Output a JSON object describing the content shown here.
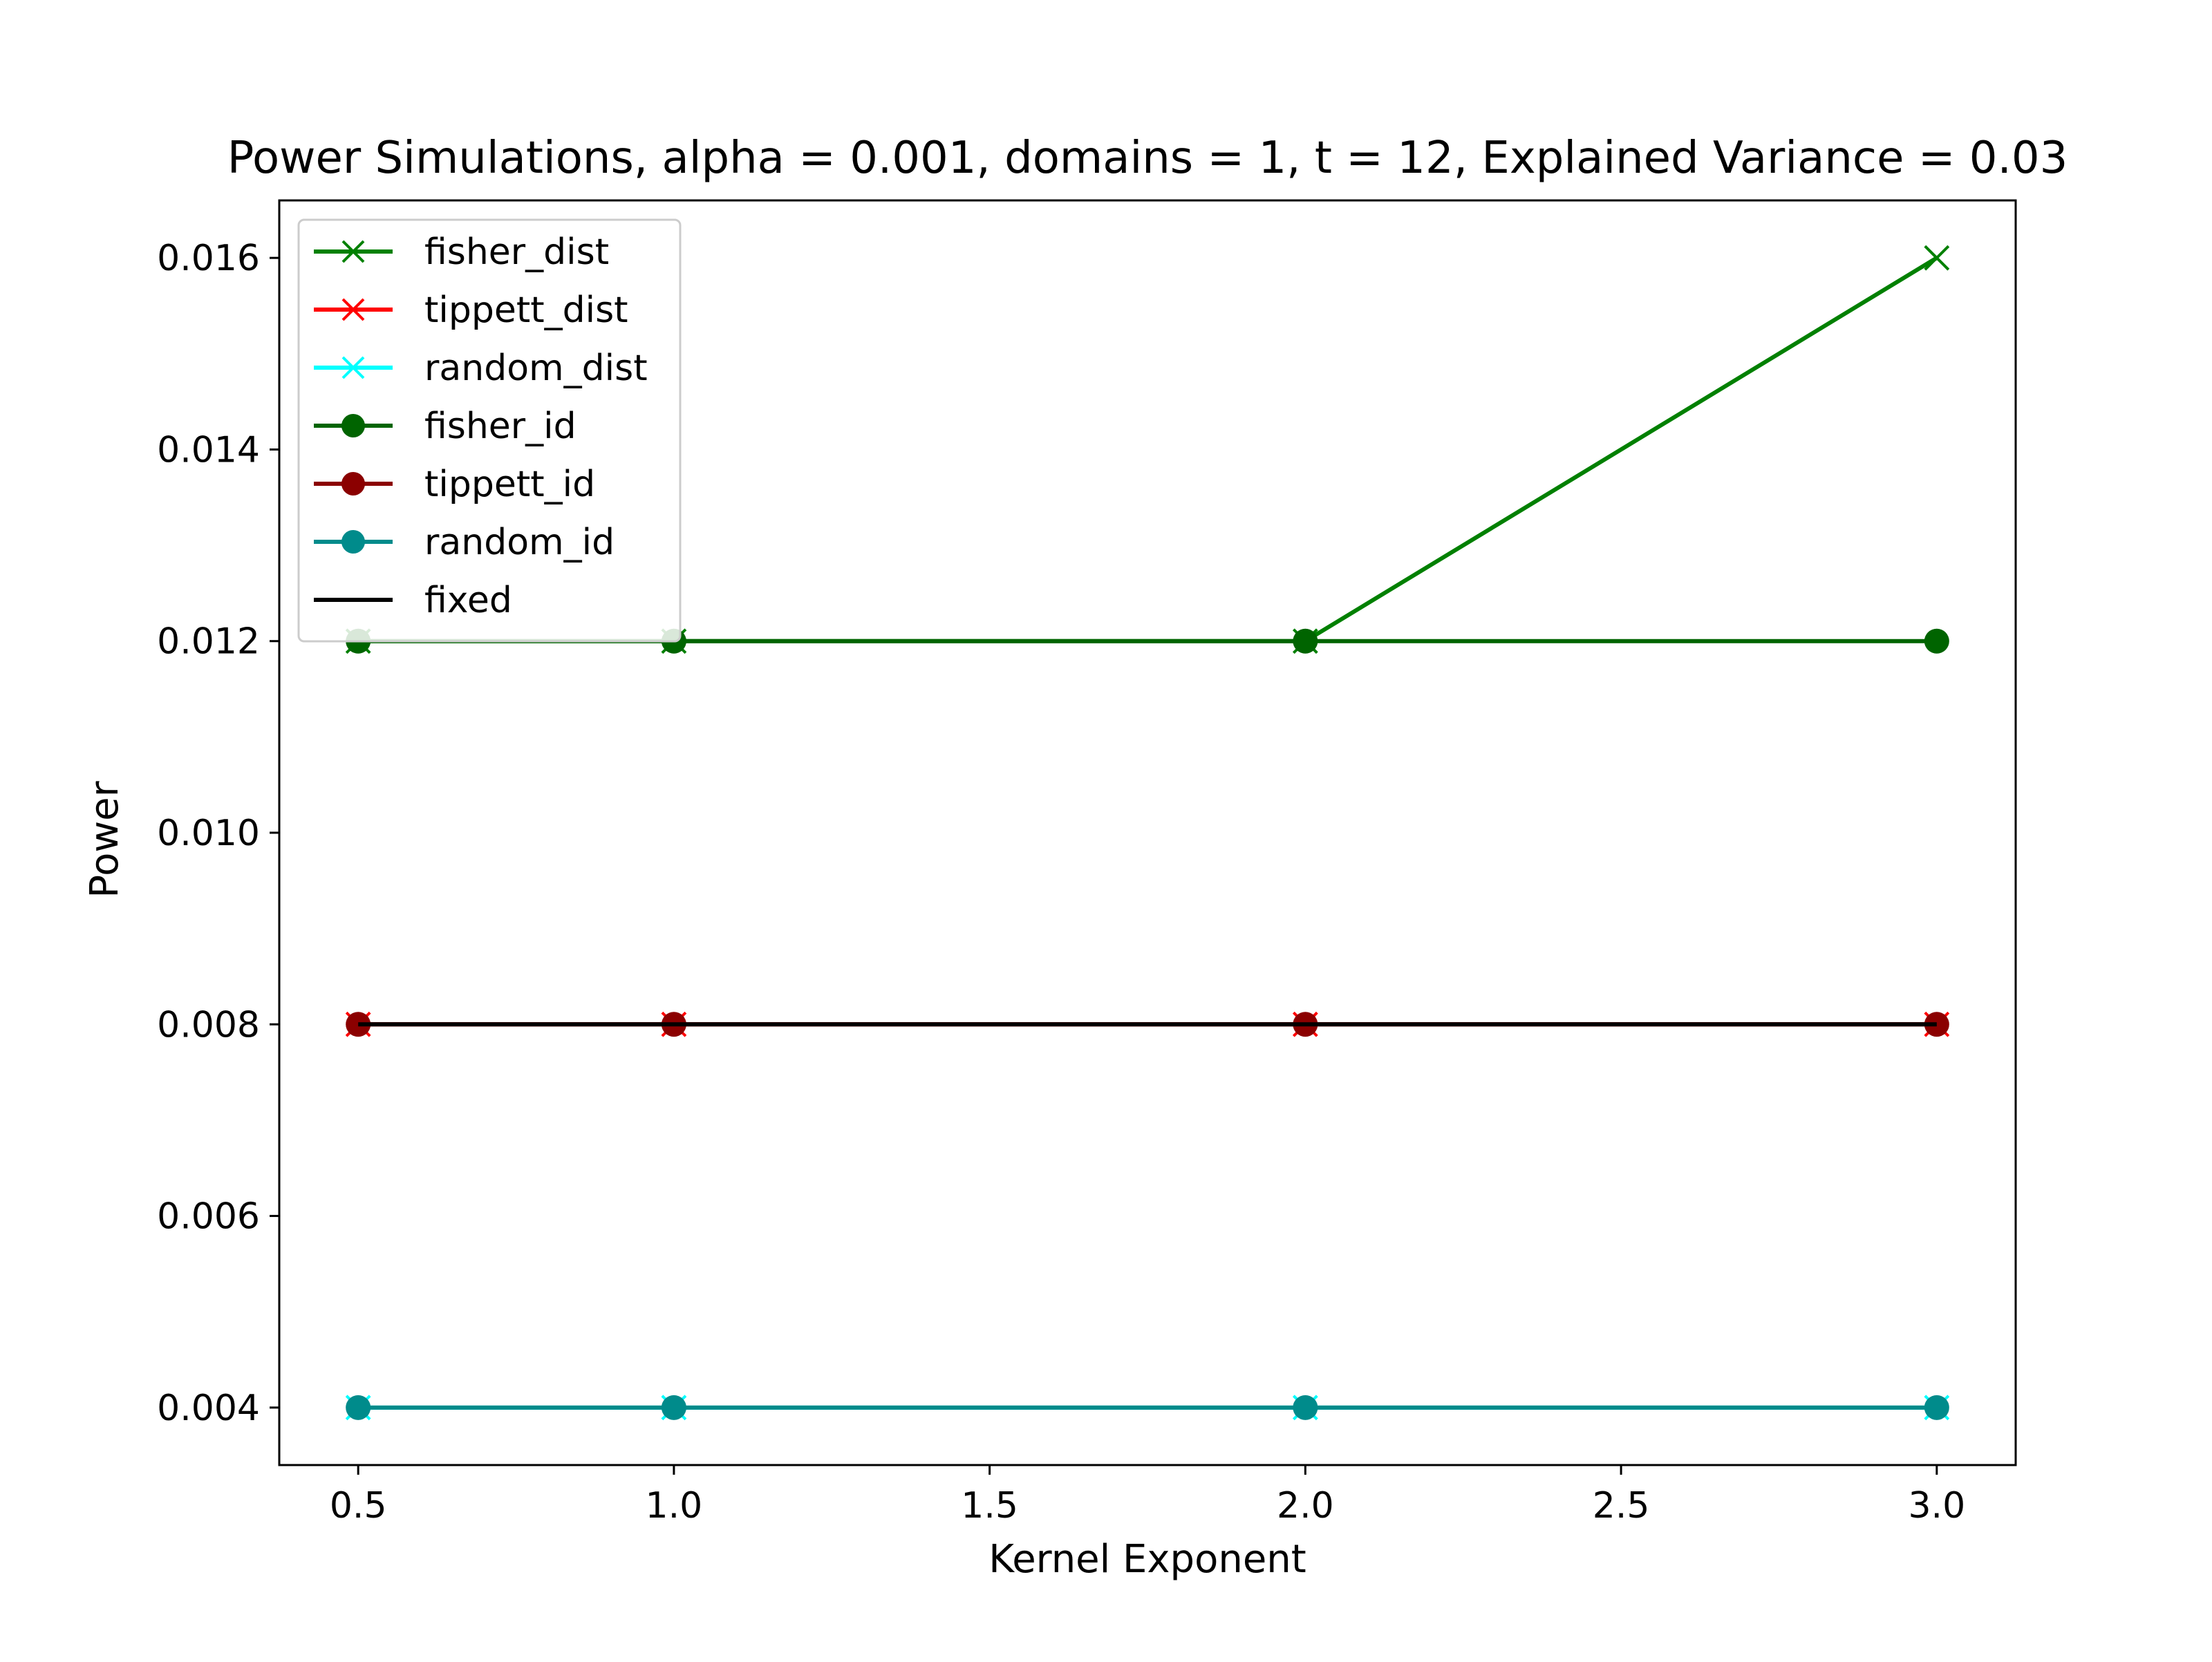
{
  "chart_data": {
    "type": "line",
    "title": "Power Simulations, alpha = 0.001, domains = 1, t = 12, Explained Variance = 0.03",
    "xlabel": "Kernel Exponent",
    "ylabel": "Power",
    "xlim": [
      0.375,
      3.125
    ],
    "ylim": [
      0.0034,
      0.0166
    ],
    "xticks": [
      0.5,
      1.0,
      1.5,
      2.0,
      2.5,
      3.0
    ],
    "xtick_labels": [
      "0.5",
      "1.0",
      "1.5",
      "2.0",
      "2.5",
      "3.0"
    ],
    "yticks": [
      0.004,
      0.006,
      0.008,
      0.01,
      0.012,
      0.014,
      0.016
    ],
    "ytick_labels": [
      "0.004",
      "0.006",
      "0.008",
      "0.010",
      "0.012",
      "0.014",
      "0.016"
    ],
    "grid": false,
    "legend_position": "upper-left",
    "x": [
      0.5,
      1.0,
      2.0,
      3.0
    ],
    "series": [
      {
        "name": "fisher_dist",
        "values": [
          0.012,
          0.012,
          0.012,
          0.016
        ],
        "color": "#008000",
        "marker": "x"
      },
      {
        "name": "tippett_dist",
        "values": [
          0.008,
          0.008,
          0.008,
          0.008
        ],
        "color": "#ff0000",
        "marker": "x"
      },
      {
        "name": "random_dist",
        "values": [
          0.004,
          0.004,
          0.004,
          0.004
        ],
        "color": "#00ffff",
        "marker": "x"
      },
      {
        "name": "fisher_id",
        "values": [
          0.012,
          0.012,
          0.012,
          0.012
        ],
        "color": "#006400",
        "marker": "o"
      },
      {
        "name": "tippett_id",
        "values": [
          0.008,
          0.008,
          0.008,
          0.008
        ],
        "color": "#8b0000",
        "marker": "o"
      },
      {
        "name": "random_id",
        "values": [
          0.004,
          0.004,
          0.004,
          0.004
        ],
        "color": "#008b8b",
        "marker": "o"
      },
      {
        "name": "fixed",
        "values": [
          0.008,
          0.008,
          0.008,
          0.008
        ],
        "color": "#000000",
        "marker": "none"
      }
    ]
  }
}
